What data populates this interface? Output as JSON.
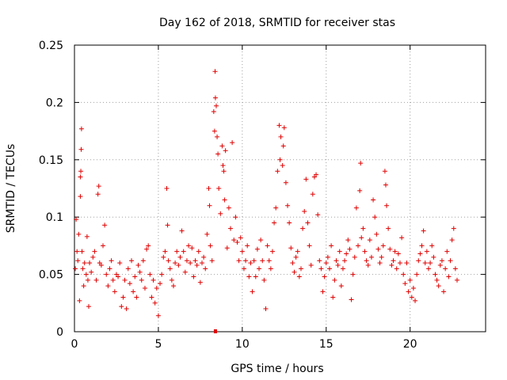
{
  "chart_data": {
    "type": "scatter",
    "title": "Day 162 of 2018, SRMTID for receiver stas",
    "xlabel": "GPS time / hours",
    "ylabel": "SRMTID / TECUs",
    "xlim": [
      0,
      24.5
    ],
    "ylim": [
      0,
      0.25
    ],
    "xticks": [
      0,
      5,
      10,
      15,
      20
    ],
    "xtick_labels": [
      "0",
      "5",
      "10",
      "15",
      "20"
    ],
    "yticks": [
      0,
      0.05,
      0.1,
      0.15,
      0.2,
      0.25
    ],
    "ytick_labels": [
      "0",
      "0.05",
      "0.1",
      "0.15",
      "0.2",
      "0.25"
    ],
    "grid": true,
    "marker": "plus",
    "color": "#e00000",
    "series": [
      {
        "name": "SRMTID",
        "points": [
          [
            0.05,
            0.055
          ],
          [
            0.1,
            0.098
          ],
          [
            0.15,
            0.07
          ],
          [
            0.2,
            0.062
          ],
          [
            0.25,
            0.085
          ],
          [
            0.3,
            0.027
          ],
          [
            0.35,
            0.118
          ],
          [
            0.35,
            0.135
          ],
          [
            0.38,
            0.14
          ],
          [
            0.4,
            0.159
          ],
          [
            0.42,
            0.177
          ],
          [
            0.45,
            0.07
          ],
          [
            0.5,
            0.055
          ],
          [
            0.55,
            0.04
          ],
          [
            0.6,
            0.06
          ],
          [
            0.7,
            0.05
          ],
          [
            0.75,
            0.083
          ],
          [
            0.8,
            0.045
          ],
          [
            0.85,
            0.022
          ],
          [
            0.9,
            0.06
          ],
          [
            1.0,
            0.052
          ],
          [
            1.1,
            0.065
          ],
          [
            1.2,
            0.07
          ],
          [
            1.3,
            0.045
          ],
          [
            1.4,
            0.12
          ],
          [
            1.45,
            0.127
          ],
          [
            1.5,
            0.06
          ],
          [
            1.6,
            0.058
          ],
          [
            1.7,
            0.075
          ],
          [
            1.8,
            0.093
          ],
          [
            1.9,
            0.05
          ],
          [
            2.0,
            0.04
          ],
          [
            2.1,
            0.055
          ],
          [
            2.2,
            0.062
          ],
          [
            2.3,
            0.045
          ],
          [
            2.4,
            0.035
          ],
          [
            2.5,
            0.05
          ],
          [
            2.6,
            0.048
          ],
          [
            2.7,
            0.06
          ],
          [
            2.8,
            0.022
          ],
          [
            2.9,
            0.03
          ],
          [
            3.0,
            0.045
          ],
          [
            3.1,
            0.02
          ],
          [
            3.2,
            0.055
          ],
          [
            3.3,
            0.042
          ],
          [
            3.4,
            0.062
          ],
          [
            3.5,
            0.035
          ],
          [
            3.6,
            0.048
          ],
          [
            3.7,
            0.03
          ],
          [
            3.8,
            0.058
          ],
          [
            3.9,
            0.052
          ],
          [
            4.0,
            0.045
          ],
          [
            4.1,
            0.062
          ],
          [
            4.2,
            0.038
          ],
          [
            4.3,
            0.072
          ],
          [
            4.4,
            0.075
          ],
          [
            4.5,
            0.05
          ],
          [
            4.6,
            0.03
          ],
          [
            4.7,
            0.045
          ],
          [
            4.8,
            0.025
          ],
          [
            4.9,
            0.038
          ],
          [
            5.0,
            0.014
          ],
          [
            5.1,
            0.042
          ],
          [
            5.2,
            0.05
          ],
          [
            5.3,
            0.065
          ],
          [
            5.4,
            0.07
          ],
          [
            5.5,
            0.125
          ],
          [
            5.55,
            0.093
          ],
          [
            5.6,
            0.062
          ],
          [
            5.7,
            0.055
          ],
          [
            5.8,
            0.045
          ],
          [
            5.9,
            0.04
          ],
          [
            6.0,
            0.06
          ],
          [
            6.1,
            0.07
          ],
          [
            6.2,
            0.058
          ],
          [
            6.3,
            0.065
          ],
          [
            6.4,
            0.088
          ],
          [
            6.5,
            0.07
          ],
          [
            6.6,
            0.052
          ],
          [
            6.7,
            0.062
          ],
          [
            6.8,
            0.075
          ],
          [
            6.9,
            0.06
          ],
          [
            7.0,
            0.073
          ],
          [
            7.1,
            0.048
          ],
          [
            7.2,
            0.062
          ],
          [
            7.3,
            0.058
          ],
          [
            7.4,
            0.07
          ],
          [
            7.5,
            0.043
          ],
          [
            7.6,
            0.06
          ],
          [
            7.7,
            0.065
          ],
          [
            7.8,
            0.055
          ],
          [
            7.9,
            0.085
          ],
          [
            8.0,
            0.125
          ],
          [
            8.05,
            0.11
          ],
          [
            8.1,
            0.075
          ],
          [
            8.2,
            0.062
          ],
          [
            8.3,
            0.192
          ],
          [
            8.35,
            0.175
          ],
          [
            8.38,
            0.227
          ],
          [
            8.4,
            0.204
          ],
          [
            8.45,
            0.197
          ],
          [
            8.5,
            0.17
          ],
          [
            8.55,
            0.155
          ],
          [
            8.6,
            0.125
          ],
          [
            8.7,
            0.103
          ],
          [
            8.8,
            0.162
          ],
          [
            8.85,
            0.145
          ],
          [
            8.9,
            0.14
          ],
          [
            8.95,
            0.115
          ],
          [
            9.0,
            0.158
          ],
          [
            9.1,
            0.073
          ],
          [
            9.2,
            0.108
          ],
          [
            9.3,
            0.09
          ],
          [
            9.4,
            0.165
          ],
          [
            9.5,
            0.08
          ],
          [
            9.6,
            0.1
          ],
          [
            9.7,
            0.078
          ],
          [
            9.8,
            0.062
          ],
          [
            9.9,
            0.082
          ],
          [
            10.0,
            0.07
          ],
          [
            10.1,
            0.055
          ],
          [
            10.2,
            0.062
          ],
          [
            10.3,
            0.075
          ],
          [
            10.4,
            0.048
          ],
          [
            10.5,
            0.06
          ],
          [
            10.6,
            0.035
          ],
          [
            10.7,
            0.062
          ],
          [
            10.8,
            0.048
          ],
          [
            10.9,
            0.072
          ],
          [
            11.0,
            0.055
          ],
          [
            11.1,
            0.08
          ],
          [
            11.2,
            0.062
          ],
          [
            11.3,
            0.045
          ],
          [
            11.4,
            0.02
          ],
          [
            11.5,
            0.075
          ],
          [
            11.6,
            0.062
          ],
          [
            11.7,
            0.055
          ],
          [
            11.8,
            0.07
          ],
          [
            11.9,
            0.095
          ],
          [
            12.0,
            0.108
          ],
          [
            12.1,
            0.14
          ],
          [
            12.2,
            0.18
          ],
          [
            12.25,
            0.15
          ],
          [
            12.3,
            0.17
          ],
          [
            12.4,
            0.145
          ],
          [
            12.45,
            0.162
          ],
          [
            12.5,
            0.178
          ],
          [
            12.6,
            0.13
          ],
          [
            12.7,
            0.11
          ],
          [
            12.8,
            0.095
          ],
          [
            12.9,
            0.073
          ],
          [
            13.0,
            0.06
          ],
          [
            13.1,
            0.052
          ],
          [
            13.2,
            0.065
          ],
          [
            13.3,
            0.07
          ],
          [
            13.4,
            0.048
          ],
          [
            13.5,
            0.055
          ],
          [
            13.6,
            0.09
          ],
          [
            13.7,
            0.105
          ],
          [
            13.8,
            0.133
          ],
          [
            13.9,
            0.095
          ],
          [
            14.0,
            0.075
          ],
          [
            14.1,
            0.058
          ],
          [
            14.2,
            0.12
          ],
          [
            14.3,
            0.135
          ],
          [
            14.4,
            0.137
          ],
          [
            14.5,
            0.102
          ],
          [
            14.6,
            0.062
          ],
          [
            14.7,
            0.055
          ],
          [
            14.8,
            0.035
          ],
          [
            14.9,
            0.048
          ],
          [
            15.0,
            0.06
          ],
          [
            15.1,
            0.065
          ],
          [
            15.2,
            0.055
          ],
          [
            15.3,
            0.075
          ],
          [
            15.4,
            0.03
          ],
          [
            15.5,
            0.045
          ],
          [
            15.6,
            0.062
          ],
          [
            15.7,
            0.058
          ],
          [
            15.8,
            0.07
          ],
          [
            15.9,
            0.04
          ],
          [
            16.0,
            0.055
          ],
          [
            16.1,
            0.062
          ],
          [
            16.2,
            0.068
          ],
          [
            16.3,
            0.08
          ],
          [
            16.4,
            0.072
          ],
          [
            16.5,
            0.028
          ],
          [
            16.6,
            0.05
          ],
          [
            16.7,
            0.065
          ],
          [
            16.8,
            0.108
          ],
          [
            16.9,
            0.075
          ],
          [
            17.0,
            0.123
          ],
          [
            17.05,
            0.147
          ],
          [
            17.1,
            0.082
          ],
          [
            17.2,
            0.09
          ],
          [
            17.3,
            0.07
          ],
          [
            17.4,
            0.062
          ],
          [
            17.5,
            0.058
          ],
          [
            17.6,
            0.08
          ],
          [
            17.7,
            0.065
          ],
          [
            17.8,
            0.115
          ],
          [
            17.9,
            0.1
          ],
          [
            18.0,
            0.085
          ],
          [
            18.1,
            0.072
          ],
          [
            18.2,
            0.06
          ],
          [
            18.3,
            0.065
          ],
          [
            18.4,
            0.075
          ],
          [
            18.5,
            0.14
          ],
          [
            18.55,
            0.128
          ],
          [
            18.6,
            0.11
          ],
          [
            18.7,
            0.09
          ],
          [
            18.8,
            0.072
          ],
          [
            18.9,
            0.058
          ],
          [
            19.0,
            0.062
          ],
          [
            19.1,
            0.07
          ],
          [
            19.2,
            0.055
          ],
          [
            19.3,
            0.068
          ],
          [
            19.4,
            0.06
          ],
          [
            19.5,
            0.082
          ],
          [
            19.6,
            0.05
          ],
          [
            19.7,
            0.042
          ],
          [
            19.8,
            0.06
          ],
          [
            19.9,
            0.035
          ],
          [
            20.0,
            0.045
          ],
          [
            20.1,
            0.03
          ],
          [
            20.2,
            0.038
          ],
          [
            20.3,
            0.027
          ],
          [
            20.4,
            0.05
          ],
          [
            20.5,
            0.062
          ],
          [
            20.6,
            0.068
          ],
          [
            20.7,
            0.075
          ],
          [
            20.8,
            0.088
          ],
          [
            20.9,
            0.06
          ],
          [
            21.0,
            0.07
          ],
          [
            21.1,
            0.055
          ],
          [
            21.2,
            0.06
          ],
          [
            21.3,
            0.075
          ],
          [
            21.4,
            0.065
          ],
          [
            21.5,
            0.05
          ],
          [
            21.6,
            0.045
          ],
          [
            21.7,
            0.04
          ],
          [
            21.8,
            0.058
          ],
          [
            21.9,
            0.062
          ],
          [
            22.0,
            0.035
          ],
          [
            22.1,
            0.055
          ],
          [
            22.2,
            0.07
          ],
          [
            22.3,
            0.048
          ],
          [
            22.4,
            0.062
          ],
          [
            22.5,
            0.08
          ],
          [
            22.6,
            0.09
          ],
          [
            22.7,
            0.055
          ],
          [
            22.8,
            0.045
          ]
        ]
      }
    ],
    "highlight_marker": {
      "x": 8.4,
      "y": 0.0
    }
  }
}
